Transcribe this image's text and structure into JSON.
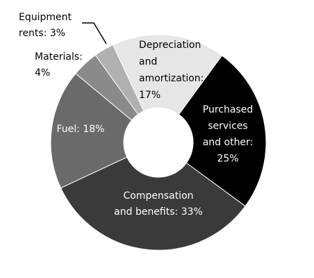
{
  "chart_data": {
    "type": "donut",
    "values": [
      17,
      25,
      33,
      18,
      4,
      3
    ],
    "value_labels": [
      [
        "Depreciation",
        "and",
        "amortization:",
        "17%"
      ],
      [
        "Purchased",
        "services",
        "and other:",
        "25%"
      ],
      [
        "Compensation",
        "and benefits: 33%"
      ],
      [
        "Fuel: 18%"
      ],
      [
        "Materials:",
        "4%"
      ],
      [
        "Equipment",
        "rents: 3%"
      ]
    ],
    "colors": [
      "#e6e6e6",
      "#000000",
      "#3a3a3a",
      "#6a6a6a",
      "#8a8a8a",
      "#b0b0b0"
    ]
  }
}
